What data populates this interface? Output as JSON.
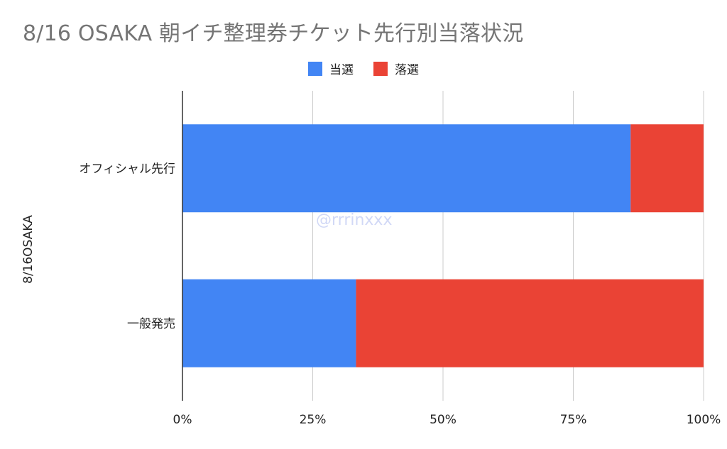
{
  "chart_data": {
    "type": "bar",
    "orientation": "horizontal",
    "stacked": "percent",
    "title": "8/16 OSAKA 朝イチ整理券チケット先行別当落状況",
    "group_label": "8/16OSAKA",
    "categories": [
      "オフィシャル先行",
      "一般発売"
    ],
    "series": [
      {
        "name": "当選",
        "color": "#4285f4",
        "values": [
          86,
          33.3
        ]
      },
      {
        "name": "落選",
        "color": "#ea4335",
        "values": [
          14,
          66.7
        ]
      }
    ],
    "x_ticks": [
      "0%",
      "25%",
      "50%",
      "75%",
      "100%"
    ],
    "xlim": [
      0,
      100
    ],
    "grid": true,
    "legend_position": "top"
  },
  "watermark": "@rrrinxxx"
}
